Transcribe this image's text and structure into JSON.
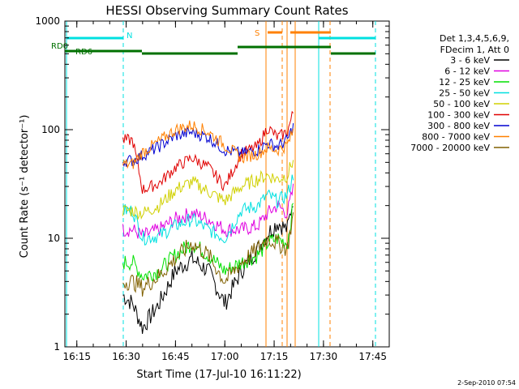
{
  "chart_data": {
    "type": "line",
    "title": "HESSI Observing Summary Count Rates",
    "xlabel": "Start Time (17-Jul-10 16:11:22)",
    "ylabel": "Count Rate (s⁻¹ detector⁻¹)",
    "x_tick_labels": [
      "16:15",
      "16:30",
      "16:45",
      "17:00",
      "17:15",
      "17:30",
      "17:45"
    ],
    "y_tick_labels": [
      "1",
      "10",
      "100",
      "1000"
    ],
    "xlim": [
      "16:11:22",
      "17:50:00"
    ],
    "ylim": [
      1,
      1000
    ],
    "y_scale": "log",
    "legend_header": [
      "Det 1,3,4,5,6,9,",
      "FDecim 1, Att 0"
    ],
    "legend_position": "right",
    "date_stamp": "2-Sep-2010 07:54",
    "flag_labels": {
      "rd0": "RD0",
      "rd6": "RD6",
      "n": "N",
      "s": "S"
    },
    "series": [
      {
        "name": "3 - 6 keV",
        "color": "#000000",
        "x": [
          "16:29",
          "16:32",
          "16:35",
          "16:40",
          "16:45",
          "16:50",
          "16:55",
          "17:00",
          "17:05",
          "17:10",
          "17:13",
          "17:16",
          "17:19",
          "17:21"
        ],
        "values": [
          3,
          2.5,
          1.5,
          2.5,
          5,
          6.5,
          5,
          2.5,
          5,
          8,
          11,
          14,
          12,
          25
        ]
      },
      {
        "name": "6 - 12 keV",
        "color": "#e000e0",
        "x": [
          "16:29",
          "16:32",
          "16:35",
          "16:40",
          "16:45",
          "16:50",
          "16:55",
          "17:00",
          "17:05",
          "17:10",
          "17:13",
          "17:16",
          "17:19",
          "17:21"
        ],
        "values": [
          12,
          12,
          10.5,
          12,
          15,
          17,
          15,
          12,
          12,
          13,
          17,
          20,
          17,
          30
        ]
      },
      {
        "name": "12 - 25 keV",
        "color": "#00e000",
        "x": [
          "16:29",
          "16:32",
          "16:35",
          "16:40",
          "16:45",
          "16:50",
          "16:55",
          "17:00",
          "17:05",
          "17:10",
          "17:13",
          "17:16",
          "17:19",
          "17:21"
        ],
        "values": [
          6,
          6,
          4.5,
          5,
          7,
          9,
          7,
          5,
          6,
          7,
          9,
          10,
          9,
          22
        ]
      },
      {
        "name": "25 - 50 keV",
        "color": "#00e0e0",
        "x": [
          "16:29",
          "16:32",
          "16:35",
          "16:40",
          "16:45",
          "16:50",
          "16:55",
          "17:00",
          "17:05",
          "17:10",
          "17:13",
          "17:16",
          "17:19",
          "17:21"
        ],
        "values": [
          18,
          18,
          10,
          10.5,
          13,
          15,
          12,
          10,
          18,
          20,
          25,
          22,
          25,
          40
        ]
      },
      {
        "name": "50 - 100 keV",
        "color": "#d0d000",
        "x": [
          "16:29",
          "16:32",
          "16:35",
          "16:40",
          "16:45",
          "16:50",
          "16:55",
          "17:00",
          "17:05",
          "17:10",
          "17:13",
          "17:16",
          "17:19",
          "17:21"
        ],
        "values": [
          18,
          18,
          17,
          20,
          28,
          33,
          27,
          22,
          30,
          35,
          38,
          35,
          38,
          55
        ]
      },
      {
        "name": "100 - 300 keV",
        "color": "#e00000",
        "x": [
          "16:29",
          "16:32",
          "16:35",
          "16:40",
          "16:45",
          "16:50",
          "16:55",
          "17:00",
          "17:05",
          "17:10",
          "17:13",
          "17:16",
          "17:19",
          "17:21"
        ],
        "values": [
          80,
          80,
          28,
          32,
          45,
          55,
          45,
          30,
          60,
          70,
          105,
          85,
          95,
          150
        ]
      },
      {
        "name": "300 - 800 keV",
        "color": "#0000d0",
        "x": [
          "16:29",
          "16:32",
          "16:35",
          "16:40",
          "16:45",
          "16:50",
          "16:55",
          "17:00",
          "17:05",
          "17:10",
          "17:13",
          "17:16",
          "17:19",
          "17:21"
        ],
        "values": [
          52,
          52,
          58,
          70,
          88,
          95,
          85,
          65,
          60,
          65,
          75,
          70,
          80,
          110
        ]
      },
      {
        "name": "800 - 7000 keV",
        "color": "#ff8000",
        "x": [
          "16:29",
          "16:32",
          "16:35",
          "16:40",
          "16:45",
          "16:50",
          "16:55",
          "17:00",
          "17:05",
          "17:10",
          "17:13",
          "17:16",
          "17:19",
          "17:21"
        ],
        "values": [
          48,
          48,
          62,
          78,
          100,
          110,
          95,
          72,
          55,
          60,
          68,
          65,
          72,
          100
        ]
      },
      {
        "name": "7000 - 20000 keV",
        "color": "#806000",
        "x": [
          "16:29",
          "16:32",
          "16:35",
          "16:40",
          "16:45",
          "16:50",
          "16:55",
          "17:00",
          "17:05",
          "17:10",
          "17:13",
          "17:16",
          "17:19",
          "17:21"
        ],
        "values": [
          4,
          4,
          3.5,
          4.5,
          6.5,
          9,
          7,
          4,
          6,
          8,
          10,
          9,
          8,
          18
        ]
      }
    ]
  }
}
